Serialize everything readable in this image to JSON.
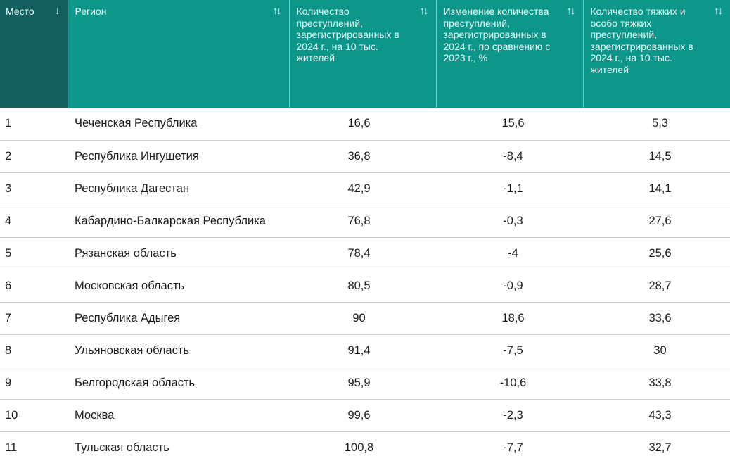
{
  "table": {
    "columns": [
      {
        "key": "rank",
        "label": "Место",
        "sort_icon": "↓",
        "sort_state": "descending-active"
      },
      {
        "key": "region",
        "label": "Регион",
        "sort_icon": "↑↓",
        "sort_state": "unsorted"
      },
      {
        "key": "crimes",
        "label": "Количество преступлений, зарегистрированных в 2024 г., на 10 тыс. жителей",
        "sort_icon": "↑↓",
        "sort_state": "unsorted"
      },
      {
        "key": "change",
        "label": "Изменение количества преступлений, зарегистрированных в 2024 г., по сравнению с 2023 г., %",
        "sort_icon": "↑↓",
        "sort_state": "unsorted"
      },
      {
        "key": "grave",
        "label": "Количество тяжких и особо тяжких преступлений, зарегистрированных в 2024 г., на 10 тыс. жителей",
        "sort_icon": "↑↓",
        "sort_state": "unsorted"
      }
    ],
    "rows": [
      {
        "rank": "1",
        "region": "Чеченская Республика",
        "crimes": "16,6",
        "change": "15,6",
        "grave": "5,3"
      },
      {
        "rank": "2",
        "region": "Республика Ингушетия",
        "crimes": "36,8",
        "change": "-8,4",
        "grave": "14,5"
      },
      {
        "rank": "3",
        "region": "Республика Дагестан",
        "crimes": "42,9",
        "change": "-1,1",
        "grave": "14,1"
      },
      {
        "rank": "4",
        "region": "Кабардино-Балкарская Республика",
        "crimes": "76,8",
        "change": "-0,3",
        "grave": "27,6"
      },
      {
        "rank": "5",
        "region": "Рязанская область",
        "crimes": "78,4",
        "change": "-4",
        "grave": "25,6"
      },
      {
        "rank": "6",
        "region": "Московская область",
        "crimes": "80,5",
        "change": "-0,9",
        "grave": "28,7"
      },
      {
        "rank": "7",
        "region": "Республика Адыгея",
        "crimes": "90",
        "change": "18,6",
        "grave": "33,6"
      },
      {
        "rank": "8",
        "region": "Ульяновская область",
        "crimes": "91,4",
        "change": "-7,5",
        "grave": "30"
      },
      {
        "rank": "9",
        "region": "Белгородская область",
        "crimes": "95,9",
        "change": "-10,6",
        "grave": "33,8"
      },
      {
        "rank": "10",
        "region": "Москва",
        "crimes": "99,6",
        "change": "-2,3",
        "grave": "43,3"
      },
      {
        "rank": "11",
        "region": "Тульская область",
        "crimes": "100,8",
        "change": "-7,7",
        "grave": "32,7"
      }
    ]
  },
  "colors": {
    "header_bg": "#0d968a",
    "header_sorted_bg": "#135f5d",
    "header_text": "#e8f7f5",
    "header_divider": "#6fd0c6",
    "row_divider": "#d0d0d0",
    "body_text": "#1c1c1c"
  }
}
